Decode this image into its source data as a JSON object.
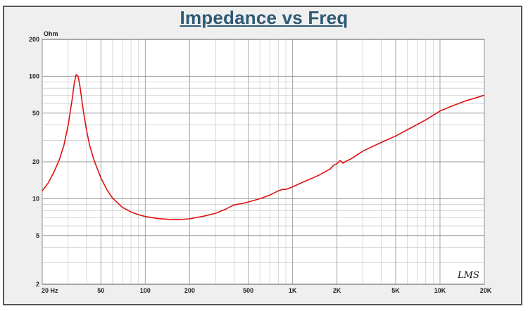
{
  "chart_data": {
    "type": "line",
    "title": "Impedance vs Freq",
    "ylabel": "Ohm",
    "xlabel": "",
    "xscale": "log",
    "yscale": "log",
    "xlim": [
      20,
      20000
    ],
    "ylim": [
      2,
      200
    ],
    "grid": true,
    "x_ticks": [
      {
        "value": 20,
        "label": "20  Hz"
      },
      {
        "value": 50,
        "label": "50"
      },
      {
        "value": 100,
        "label": "100"
      },
      {
        "value": 200,
        "label": "200"
      },
      {
        "value": 500,
        "label": "500"
      },
      {
        "value": 1000,
        "label": "1K"
      },
      {
        "value": 2000,
        "label": "2K"
      },
      {
        "value": 5000,
        "label": "5K"
      },
      {
        "value": 10000,
        "label": "10K"
      },
      {
        "value": 20000,
        "label": "20K"
      }
    ],
    "y_ticks": [
      {
        "value": 200,
        "label": "200"
      },
      {
        "value": 100,
        "label": "100"
      },
      {
        "value": 50,
        "label": "50"
      },
      {
        "value": 20,
        "label": "20"
      },
      {
        "value": 10,
        "label": "10"
      },
      {
        "value": 5,
        "label": "5"
      },
      {
        "value": 2,
        "label": "2"
      }
    ],
    "series": [
      {
        "color": "#e01010",
        "x": [
          20,
          22,
          24,
          26,
          28,
          30,
          32,
          33,
          34,
          35,
          36,
          37,
          38,
          40,
          42,
          45,
          50,
          55,
          60,
          70,
          80,
          90,
          100,
          120,
          150,
          170,
          200,
          250,
          300,
          350,
          400,
          450,
          500,
          600,
          700,
          800,
          850,
          900,
          1000,
          1200,
          1500,
          1800,
          1900,
          2000,
          2100,
          2200,
          2300,
          2500,
          3000,
          4000,
          5000,
          6000,
          8000,
          10000,
          12000,
          15000,
          20000
        ],
        "y": [
          11.6,
          13.5,
          16.5,
          20.5,
          27,
          40,
          66,
          88,
          103,
          100,
          84,
          66,
          52,
          36,
          27,
          20.5,
          14.8,
          11.8,
          10.1,
          8.5,
          7.8,
          7.4,
          7.15,
          6.9,
          6.75,
          6.75,
          6.85,
          7.2,
          7.6,
          8.2,
          8.9,
          9.1,
          9.4,
          10.0,
          10.7,
          11.6,
          11.9,
          11.9,
          12.5,
          13.8,
          15.5,
          17.5,
          18.8,
          19.3,
          20.5,
          19.5,
          20.2,
          21.2,
          24.5,
          28.8,
          32.5,
          36.5,
          44,
          52,
          57,
          63,
          70
        ]
      }
    ]
  },
  "signature": "LMS"
}
